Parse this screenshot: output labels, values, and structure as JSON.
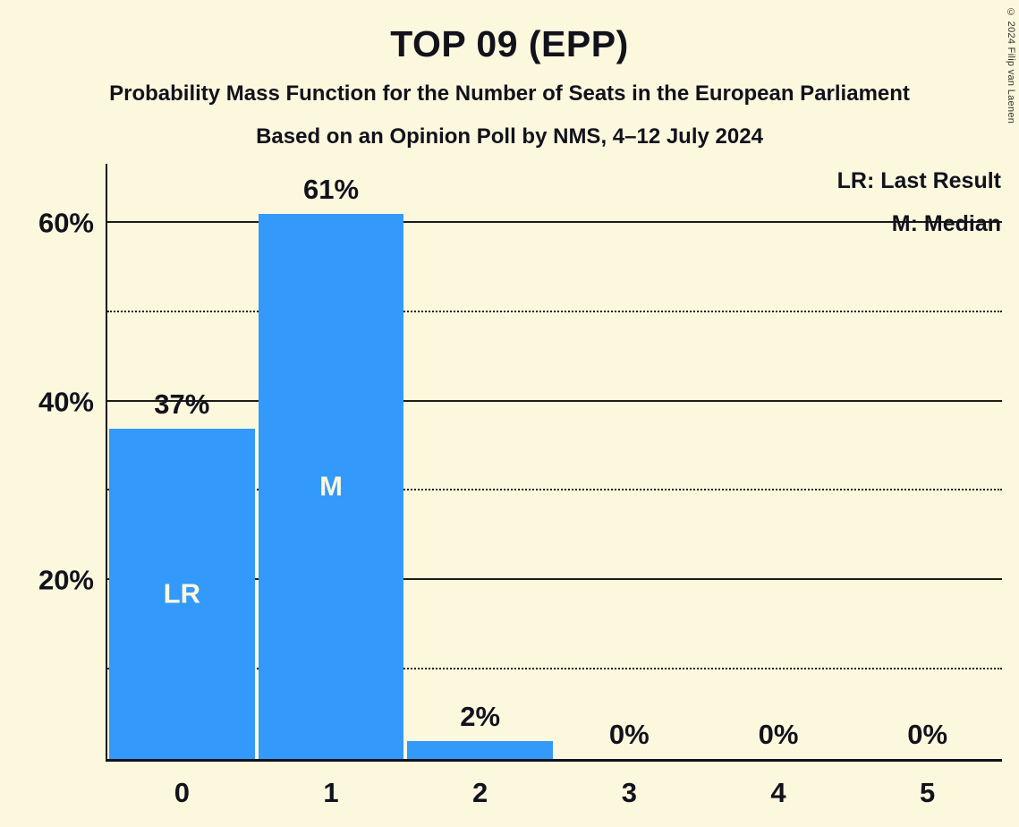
{
  "title": "TOP 09 (EPP)",
  "subtitle": "Probability Mass Function for the Number of Seats in the European Parliament",
  "poll_info": "Based on an Opinion Poll by NMS, 4–12 July 2024",
  "copyright": "© 2024 Filip van Laenen",
  "legend": {
    "last_result": "LR: Last Result",
    "median": "M: Median"
  },
  "colors": {
    "background": "#FCF8DE",
    "bar": "#3399FA",
    "text": "#12121C",
    "bar_annotation": "#FCF8DE"
  },
  "chart_data": {
    "type": "bar",
    "title": "TOP 09 (EPP)",
    "categories": [
      "0",
      "1",
      "2",
      "3",
      "4",
      "5"
    ],
    "values": [
      37,
      61,
      2,
      0,
      0,
      0
    ],
    "value_labels": [
      "37%",
      "61%",
      "2%",
      "0%",
      "0%",
      "0%"
    ],
    "bar_annotations": [
      "LR",
      "M",
      "",
      "",
      "",
      ""
    ],
    "xlabel": "",
    "ylabel": "",
    "ylim": [
      0,
      66.6
    ],
    "y_major_ticks": [
      {
        "value": 20,
        "label": "20%"
      },
      {
        "value": 40,
        "label": "40%"
      },
      {
        "value": 60,
        "label": "60%"
      }
    ],
    "y_minor_ticks": [
      10,
      30,
      50
    ],
    "grid": "horizontal",
    "legend_position": "top-right"
  }
}
